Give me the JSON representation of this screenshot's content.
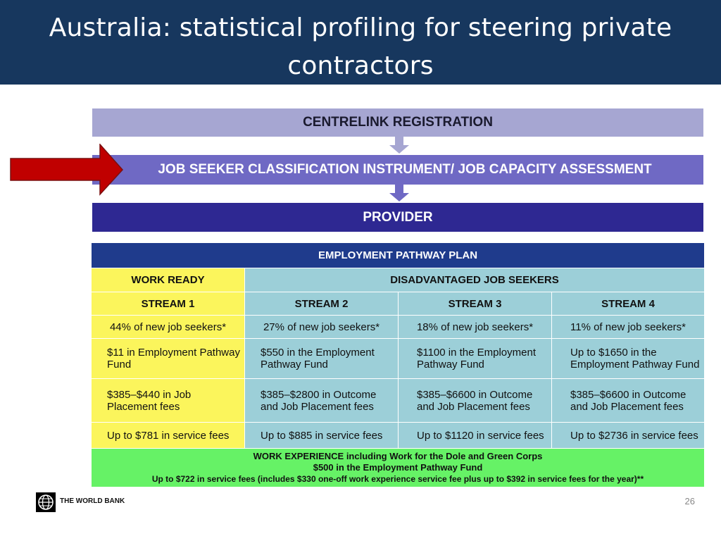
{
  "slide": {
    "title": "Australia: statistical profiling for steering private contractors",
    "page_number": "26"
  },
  "flow": {
    "step1": "CENTRELINK REGISTRATION",
    "step2": "JOB SEEKER CLASSIFICATION INSTRUMENT/ JOB CAPACITY ASSESSMENT",
    "step3": "PROVIDER"
  },
  "plan": {
    "title": "EMPLOYMENT PATHWAY PLAN",
    "work_ready": "WORK READY",
    "disadvantaged": "DISADVANTAGED JOB SEEKERS",
    "streams": [
      {
        "name": "STREAM 1",
        "share": "44% of new job seekers*",
        "fund": "$11 in Employment Pathway Fund",
        "placement": "$385–$440 in Job Placement fees",
        "service": "Up to $781 in service fees"
      },
      {
        "name": "STREAM 2",
        "share": "27% of new job seekers*",
        "fund": "$550 in the Employment Pathway Fund",
        "placement": "$385–$2800 in Outcome and Job Placement fees",
        "service": "Up to $885 in service fees"
      },
      {
        "name": "STREAM 3",
        "share": "18% of new job seekers*",
        "fund": "$1100 in the Employment Pathway Fund",
        "placement": "$385–$6600 in Outcome and Job Placement fees",
        "service": "Up to $1120 in service fees"
      },
      {
        "name": "STREAM 4",
        "share": "11% of new job seekers*",
        "fund": "Up to $1650 in the Employment Pathway Fund",
        "placement": "$385–$6600 in Outcome and Job Placement fees",
        "service": "Up to $2736 in service fees"
      }
    ],
    "work_experience": {
      "heading_bold": "WORK EXPERIENCE",
      "heading_rest": " including Work for the Dole and Green Corps",
      "line2": "$500 in the Employment Pathway Fund",
      "line3": "Up to $722 in service fees (includes $330 one-off work experience service fee plus up to $392 in service fees for the year)**"
    }
  },
  "footer": {
    "org": "THE WORLD BANK"
  },
  "colors": {
    "title_bg": "#17375e",
    "band1": "#a6a6d2",
    "band2": "#6f69c4",
    "band3": "#2e2892",
    "header": "#1f3b8c",
    "yellow": "#fbf55c",
    "blue": "#9ccfd8",
    "green": "#66f266",
    "red_arrow": "#c00000"
  }
}
